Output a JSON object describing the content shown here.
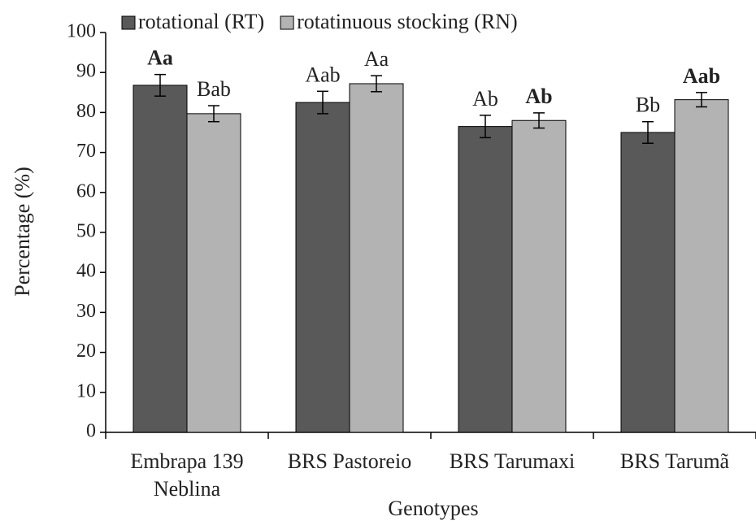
{
  "chart_data": {
    "type": "bar",
    "categories": [
      "Embrapa 139\nNeblina",
      "BRS Pastoreio",
      "BRS Tarumaxi",
      "BRS Tarumã"
    ],
    "series": [
      {
        "name": "rotational (RT)",
        "color": "#595959",
        "values": [
          86.8,
          82.5,
          76.5,
          75.0
        ],
        "errors": [
          2.7,
          2.8,
          2.8,
          2.7
        ],
        "value_labels": [
          "Aa",
          "Aab",
          "Ab",
          "Bb"
        ],
        "labels_bold": [
          true,
          false,
          false,
          false
        ]
      },
      {
        "name": "rotatinuous stocking (RN)",
        "color": "#b3b3b3",
        "values": [
          79.7,
          87.2,
          78.0,
          83.2
        ],
        "errors": [
          2.0,
          2.0,
          1.9,
          1.8
        ],
        "value_labels": [
          "Bab",
          "Aa",
          "Ab",
          "Aab"
        ],
        "labels_bold": [
          false,
          false,
          true,
          true
        ]
      }
    ],
    "xlabel": "Genotypes",
    "ylabel": "Percentage (%)",
    "ylim": [
      0,
      100
    ],
    "yticks": [
      0,
      10,
      20,
      30,
      40,
      50,
      60,
      70,
      80,
      90,
      100
    ],
    "legend": "top"
  }
}
